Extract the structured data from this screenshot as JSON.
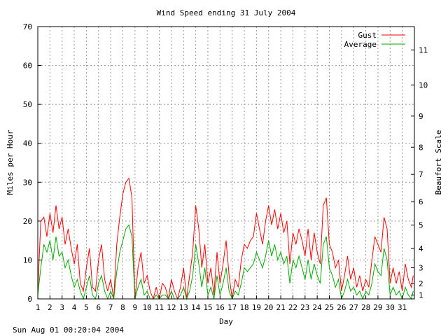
{
  "chart_data": {
    "type": "line",
    "title": "Wind Speed ending 31 July 2004",
    "xlabel": "Day",
    "ylabel": "Miles per Hour",
    "y2label": "Beaufort Scale",
    "footer": "Sun Aug 01 00:20:04 2004",
    "xlim": [
      1,
      32
    ],
    "ylim": [
      0,
      70
    ],
    "x_ticks": [
      "1",
      "2",
      "3",
      "4",
      "5",
      "6",
      "7",
      "8",
      "9",
      "10",
      "11",
      "12",
      "13",
      "14",
      "15",
      "16",
      "17",
      "18",
      "19",
      "20",
      "21",
      "22",
      "23",
      "24",
      "25",
      "26",
      "27",
      "28",
      "29",
      "30",
      "31"
    ],
    "y_ticks": [
      "0",
      "10",
      "20",
      "30",
      "40",
      "50",
      "60",
      "70"
    ],
    "beaufort_ticks": [
      {
        "label": "1",
        "mph": 1
      },
      {
        "label": "2",
        "mph": 4
      },
      {
        "label": "3",
        "mph": 8
      },
      {
        "label": "4",
        "mph": 13
      },
      {
        "label": "5",
        "mph": 19
      },
      {
        "label": "6",
        "mph": 25
      },
      {
        "label": "7",
        "mph": 32
      },
      {
        "label": "8",
        "mph": 39
      },
      {
        "label": "9",
        "mph": 47
      },
      {
        "label": "10",
        "mph": 55
      },
      {
        "label": "11",
        "mph": 64
      }
    ],
    "grid": true,
    "legend_position": "top-right",
    "series": [
      {
        "name": "Gust",
        "color": "#ff0000",
        "points": [
          [
            1.0,
            2
          ],
          [
            1.25,
            20
          ],
          [
            1.5,
            21
          ],
          [
            1.75,
            16
          ],
          [
            2.0,
            22
          ],
          [
            2.25,
            17
          ],
          [
            2.5,
            24
          ],
          [
            2.75,
            18
          ],
          [
            3.0,
            21
          ],
          [
            3.25,
            14
          ],
          [
            3.5,
            18
          ],
          [
            3.75,
            13
          ],
          [
            4.0,
            9
          ],
          [
            4.25,
            14
          ],
          [
            4.5,
            4
          ],
          [
            4.75,
            2
          ],
          [
            5.0,
            8
          ],
          [
            5.25,
            13
          ],
          [
            5.5,
            3
          ],
          [
            5.75,
            2
          ],
          [
            6.0,
            10
          ],
          [
            6.25,
            14
          ],
          [
            6.5,
            5
          ],
          [
            6.75,
            2
          ],
          [
            7.0,
            5
          ],
          [
            7.25,
            0
          ],
          [
            7.5,
            14
          ],
          [
            7.75,
            21
          ],
          [
            8.0,
            27
          ],
          [
            8.25,
            30
          ],
          [
            8.5,
            31
          ],
          [
            8.75,
            26
          ],
          [
            9.0,
            0
          ],
          [
            9.25,
            8
          ],
          [
            9.5,
            12
          ],
          [
            9.75,
            4
          ],
          [
            10.0,
            6
          ],
          [
            10.25,
            2
          ],
          [
            10.5,
            0
          ],
          [
            10.75,
            3
          ],
          [
            11.0,
            0
          ],
          [
            11.25,
            4
          ],
          [
            11.5,
            3
          ],
          [
            11.75,
            0
          ],
          [
            12.0,
            5
          ],
          [
            12.25,
            2
          ],
          [
            12.5,
            0
          ],
          [
            12.75,
            3
          ],
          [
            13.0,
            8
          ],
          [
            13.25,
            0
          ],
          [
            13.5,
            6
          ],
          [
            13.75,
            12
          ],
          [
            14.0,
            24
          ],
          [
            14.25,
            18
          ],
          [
            14.5,
            8
          ],
          [
            14.75,
            14
          ],
          [
            15.0,
            4
          ],
          [
            15.25,
            8
          ],
          [
            15.5,
            1
          ],
          [
            15.75,
            12
          ],
          [
            16.0,
            4
          ],
          [
            16.25,
            9
          ],
          [
            16.5,
            15
          ],
          [
            16.75,
            6
          ],
          [
            17.0,
            0
          ],
          [
            17.25,
            5
          ],
          [
            17.5,
            3
          ],
          [
            17.75,
            10
          ],
          [
            18.0,
            14
          ],
          [
            18.25,
            13
          ],
          [
            18.5,
            15
          ],
          [
            18.75,
            16
          ],
          [
            19.0,
            22
          ],
          [
            19.25,
            18
          ],
          [
            19.5,
            14
          ],
          [
            19.75,
            20
          ],
          [
            20.0,
            24
          ],
          [
            20.25,
            19
          ],
          [
            20.5,
            23
          ],
          [
            20.75,
            18
          ],
          [
            21.0,
            22
          ],
          [
            21.25,
            17
          ],
          [
            21.5,
            20
          ],
          [
            21.75,
            9
          ],
          [
            22.0,
            17
          ],
          [
            22.25,
            14
          ],
          [
            22.5,
            18
          ],
          [
            22.75,
            15
          ],
          [
            23.0,
            11
          ],
          [
            23.25,
            18
          ],
          [
            23.5,
            10
          ],
          [
            23.75,
            17
          ],
          [
            24.0,
            12
          ],
          [
            24.25,
            9
          ],
          [
            24.5,
            24
          ],
          [
            24.75,
            26
          ],
          [
            25.0,
            14
          ],
          [
            25.25,
            12
          ],
          [
            25.5,
            8
          ],
          [
            25.75,
            10
          ],
          [
            26.0,
            2
          ],
          [
            26.25,
            6
          ],
          [
            26.5,
            11
          ],
          [
            26.75,
            5
          ],
          [
            27.0,
            8
          ],
          [
            27.25,
            3
          ],
          [
            27.5,
            6
          ],
          [
            27.75,
            2
          ],
          [
            28.0,
            5
          ],
          [
            28.25,
            3
          ],
          [
            28.5,
            10
          ],
          [
            28.75,
            16
          ],
          [
            29.0,
            14
          ],
          [
            29.25,
            12
          ],
          [
            29.5,
            21
          ],
          [
            29.75,
            18
          ],
          [
            30.0,
            4
          ],
          [
            30.25,
            8
          ],
          [
            30.5,
            4
          ],
          [
            30.75,
            7
          ],
          [
            31.0,
            2
          ],
          [
            31.25,
            9
          ],
          [
            31.5,
            5
          ],
          [
            31.75,
            3
          ],
          [
            31.9,
            6
          ]
        ]
      },
      {
        "name": "Average",
        "color": "#00aa00",
        "points": [
          [
            1.0,
            1
          ],
          [
            1.25,
            8
          ],
          [
            1.5,
            14
          ],
          [
            1.75,
            12
          ],
          [
            2.0,
            15
          ],
          [
            2.25,
            10
          ],
          [
            2.5,
            16
          ],
          [
            2.75,
            11
          ],
          [
            3.0,
            12
          ],
          [
            3.25,
            8
          ],
          [
            3.5,
            10
          ],
          [
            3.75,
            6
          ],
          [
            4.0,
            3
          ],
          [
            4.25,
            5
          ],
          [
            4.5,
            2
          ],
          [
            4.75,
            0
          ],
          [
            5.0,
            3
          ],
          [
            5.25,
            6
          ],
          [
            5.5,
            1
          ],
          [
            5.75,
            0
          ],
          [
            6.0,
            4
          ],
          [
            6.25,
            6
          ],
          [
            6.5,
            2
          ],
          [
            6.75,
            0
          ],
          [
            7.0,
            2
          ],
          [
            7.25,
            0
          ],
          [
            7.5,
            7
          ],
          [
            7.75,
            12
          ],
          [
            8.0,
            15
          ],
          [
            8.25,
            18
          ],
          [
            8.5,
            19
          ],
          [
            8.75,
            16
          ],
          [
            9.0,
            0
          ],
          [
            9.25,
            3
          ],
          [
            9.5,
            5
          ],
          [
            9.75,
            1
          ],
          [
            10.0,
            2
          ],
          [
            10.25,
            0
          ],
          [
            10.5,
            0
          ],
          [
            10.75,
            1
          ],
          [
            11.0,
            0
          ],
          [
            11.25,
            1
          ],
          [
            11.5,
            1
          ],
          [
            11.75,
            0
          ],
          [
            12.0,
            2
          ],
          [
            12.25,
            0
          ],
          [
            12.5,
            0
          ],
          [
            12.75,
            1
          ],
          [
            13.0,
            3
          ],
          [
            13.25,
            0
          ],
          [
            13.5,
            2
          ],
          [
            13.75,
            6
          ],
          [
            14.0,
            14
          ],
          [
            14.25,
            9
          ],
          [
            14.5,
            3
          ],
          [
            14.75,
            8
          ],
          [
            15.0,
            1
          ],
          [
            15.25,
            3
          ],
          [
            15.5,
            0
          ],
          [
            15.75,
            6
          ],
          [
            16.0,
            1
          ],
          [
            16.25,
            4
          ],
          [
            16.5,
            8
          ],
          [
            16.75,
            2
          ],
          [
            17.0,
            0
          ],
          [
            17.25,
            2
          ],
          [
            17.5,
            1
          ],
          [
            17.75,
            4
          ],
          [
            18.0,
            8
          ],
          [
            18.25,
            7
          ],
          [
            18.5,
            8
          ],
          [
            18.75,
            9
          ],
          [
            19.0,
            12
          ],
          [
            19.25,
            10
          ],
          [
            19.5,
            8
          ],
          [
            19.75,
            11
          ],
          [
            20.0,
            15
          ],
          [
            20.25,
            11
          ],
          [
            20.5,
            14
          ],
          [
            20.75,
            10
          ],
          [
            21.0,
            12
          ],
          [
            21.25,
            9
          ],
          [
            21.5,
            11
          ],
          [
            21.75,
            4
          ],
          [
            22.0,
            10
          ],
          [
            22.25,
            8
          ],
          [
            22.5,
            11
          ],
          [
            22.75,
            8
          ],
          [
            23.0,
            5
          ],
          [
            23.25,
            10
          ],
          [
            23.5,
            5
          ],
          [
            23.75,
            9
          ],
          [
            24.0,
            6
          ],
          [
            24.25,
            4
          ],
          [
            24.5,
            14
          ],
          [
            24.75,
            16
          ],
          [
            25.0,
            8
          ],
          [
            25.25,
            6
          ],
          [
            25.5,
            3
          ],
          [
            25.75,
            5
          ],
          [
            26.0,
            0
          ],
          [
            26.25,
            2
          ],
          [
            26.5,
            5
          ],
          [
            26.75,
            2
          ],
          [
            27.0,
            3
          ],
          [
            27.25,
            1
          ],
          [
            27.5,
            2
          ],
          [
            27.75,
            0
          ],
          [
            28.0,
            2
          ],
          [
            28.25,
            1
          ],
          [
            28.5,
            4
          ],
          [
            28.75,
            9
          ],
          [
            29.0,
            7
          ],
          [
            29.25,
            6
          ],
          [
            29.5,
            13
          ],
          [
            29.75,
            10
          ],
          [
            30.0,
            1
          ],
          [
            30.25,
            3
          ],
          [
            30.5,
            1
          ],
          [
            30.75,
            2
          ],
          [
            31.0,
            0
          ],
          [
            31.25,
            3
          ],
          [
            31.5,
            1
          ],
          [
            31.75,
            0
          ],
          [
            31.9,
            2
          ]
        ]
      }
    ]
  }
}
